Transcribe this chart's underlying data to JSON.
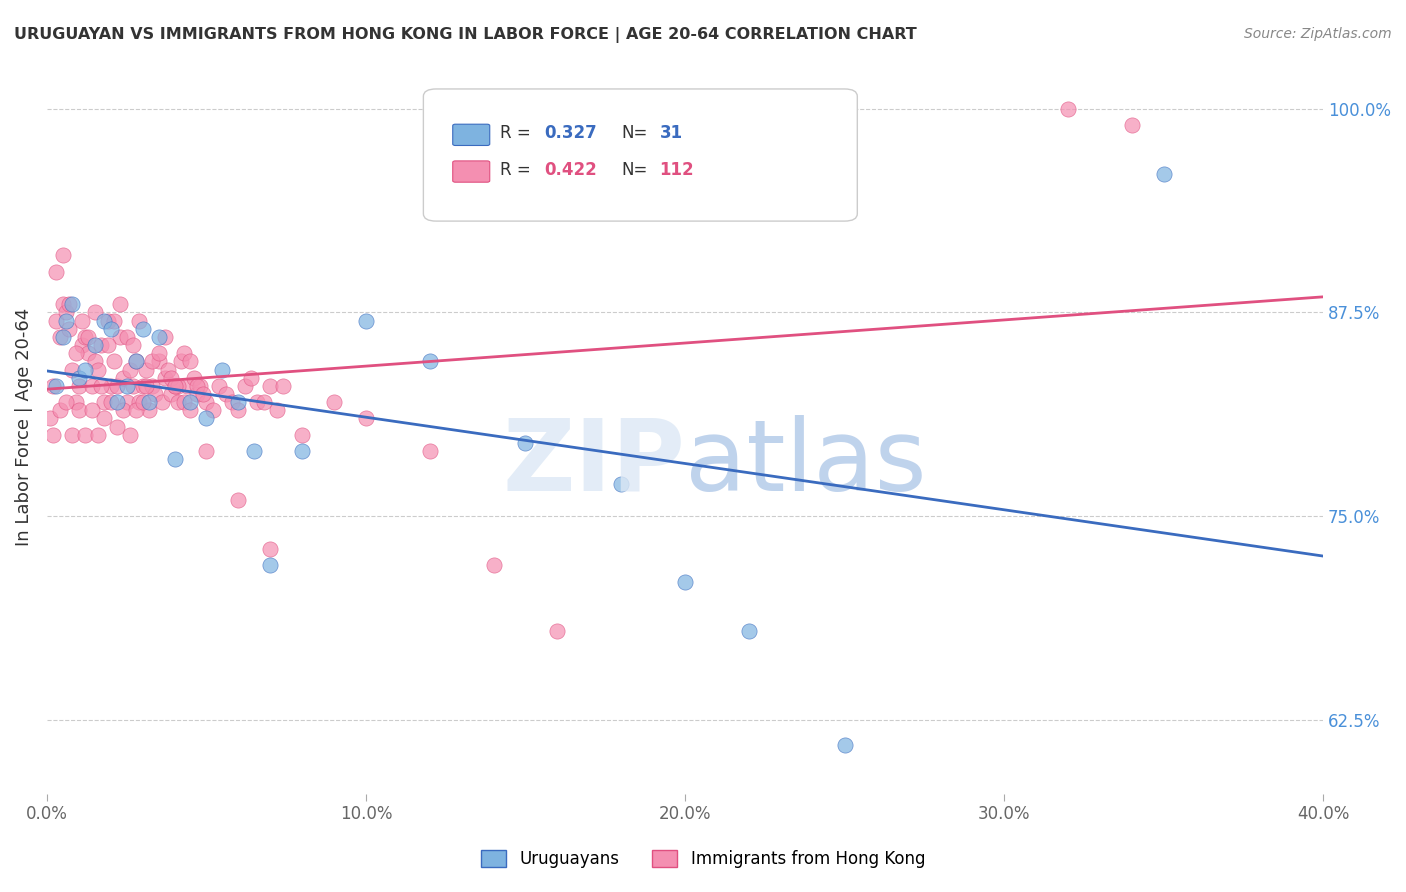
{
  "title": "URUGUAYAN VS IMMIGRANTS FROM HONG KONG IN LABOR FORCE | AGE 20-64 CORRELATION CHART",
  "source": "Source: ZipAtlas.com",
  "xlabel_bottom": "",
  "ylabel": "In Labor Force | Age 20-64",
  "xlim": [
    0.0,
    0.4
  ],
  "ylim": [
    0.58,
    1.03
  ],
  "xticks": [
    0.0,
    0.1,
    0.2,
    0.3,
    0.4
  ],
  "xtick_labels": [
    "0.0%",
    "10.0%",
    "20.0%",
    "30.0%",
    "40.0%"
  ],
  "yticks_right": [
    0.625,
    0.75,
    0.875,
    1.0
  ],
  "ytick_labels_right": [
    "62.5%",
    "75.0%",
    "87.5%",
    "100.0%"
  ],
  "blue_R": 0.327,
  "blue_N": 31,
  "pink_R": 0.422,
  "pink_N": 112,
  "blue_color": "#7eb3e0",
  "pink_color": "#f48fb1",
  "blue_line_color": "#3a6bbf",
  "pink_line_color": "#e05080",
  "legend_label_blue": "Uruguayans",
  "legend_label_pink": "Immigrants from Hong Kong",
  "watermark": "ZIPatlas",
  "blue_scatter_x": [
    0.003,
    0.005,
    0.006,
    0.008,
    0.01,
    0.012,
    0.015,
    0.018,
    0.02,
    0.022,
    0.025,
    0.028,
    0.03,
    0.032,
    0.035,
    0.04,
    0.045,
    0.05,
    0.055,
    0.06,
    0.065,
    0.07,
    0.08,
    0.1,
    0.12,
    0.15,
    0.18,
    0.2,
    0.22,
    0.25,
    0.35
  ],
  "blue_scatter_y": [
    0.83,
    0.86,
    0.87,
    0.88,
    0.835,
    0.84,
    0.855,
    0.87,
    0.865,
    0.82,
    0.83,
    0.845,
    0.865,
    0.82,
    0.86,
    0.785,
    0.82,
    0.81,
    0.84,
    0.82,
    0.79,
    0.72,
    0.79,
    0.87,
    0.845,
    0.795,
    0.77,
    0.71,
    0.68,
    0.61,
    0.96
  ],
  "pink_scatter_x": [
    0.002,
    0.003,
    0.004,
    0.005,
    0.006,
    0.007,
    0.008,
    0.009,
    0.01,
    0.011,
    0.012,
    0.013,
    0.014,
    0.015,
    0.016,
    0.017,
    0.018,
    0.019,
    0.02,
    0.021,
    0.022,
    0.023,
    0.024,
    0.025,
    0.026,
    0.027,
    0.028,
    0.029,
    0.03,
    0.031,
    0.032,
    0.033,
    0.034,
    0.035,
    0.036,
    0.037,
    0.038,
    0.039,
    0.04,
    0.041,
    0.042,
    0.043,
    0.044,
    0.045,
    0.046,
    0.047,
    0.048,
    0.05,
    0.052,
    0.054,
    0.056,
    0.058,
    0.06,
    0.062,
    0.064,
    0.066,
    0.068,
    0.07,
    0.072,
    0.074,
    0.003,
    0.005,
    0.007,
    0.009,
    0.011,
    0.013,
    0.015,
    0.017,
    0.019,
    0.021,
    0.023,
    0.025,
    0.027,
    0.029,
    0.031,
    0.033,
    0.035,
    0.037,
    0.039,
    0.041,
    0.043,
    0.045,
    0.047,
    0.049,
    0.001,
    0.002,
    0.004,
    0.006,
    0.008,
    0.01,
    0.012,
    0.014,
    0.016,
    0.018,
    0.02,
    0.022,
    0.024,
    0.026,
    0.028,
    0.03,
    0.04,
    0.05,
    0.06,
    0.07,
    0.08,
    0.09,
    0.1,
    0.12,
    0.14,
    0.16,
    0.32,
    0.34
  ],
  "pink_scatter_y": [
    0.83,
    0.87,
    0.86,
    0.88,
    0.875,
    0.865,
    0.84,
    0.82,
    0.83,
    0.855,
    0.86,
    0.85,
    0.83,
    0.845,
    0.84,
    0.855,
    0.82,
    0.87,
    0.83,
    0.845,
    0.83,
    0.86,
    0.835,
    0.82,
    0.84,
    0.83,
    0.845,
    0.82,
    0.83,
    0.84,
    0.815,
    0.83,
    0.825,
    0.845,
    0.82,
    0.835,
    0.84,
    0.825,
    0.83,
    0.82,
    0.845,
    0.82,
    0.83,
    0.815,
    0.835,
    0.825,
    0.83,
    0.82,
    0.815,
    0.83,
    0.825,
    0.82,
    0.815,
    0.83,
    0.835,
    0.82,
    0.82,
    0.83,
    0.815,
    0.83,
    0.9,
    0.91,
    0.88,
    0.85,
    0.87,
    0.86,
    0.875,
    0.83,
    0.855,
    0.87,
    0.88,
    0.86,
    0.855,
    0.87,
    0.83,
    0.845,
    0.85,
    0.86,
    0.835,
    0.83,
    0.85,
    0.845,
    0.83,
    0.825,
    0.81,
    0.8,
    0.815,
    0.82,
    0.8,
    0.815,
    0.8,
    0.815,
    0.8,
    0.81,
    0.82,
    0.805,
    0.815,
    0.8,
    0.815,
    0.82,
    0.83,
    0.79,
    0.76,
    0.73,
    0.8,
    0.82,
    0.81,
    0.79,
    0.72,
    0.68,
    1.0,
    0.99
  ]
}
